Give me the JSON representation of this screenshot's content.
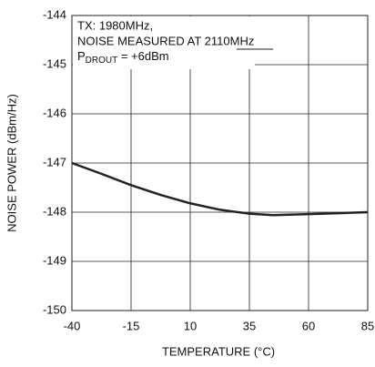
{
  "chart_data": {
    "type": "line",
    "xlabel": "TEMPERATURE (°C)",
    "ylabel": "NOISE POWER (dBm/Hz)",
    "annotations": [
      "TX: 1980MHz,",
      "NOISE MEASURED AT 2110MHz"
    ],
    "annotation_power": [
      "P",
      "DROUT",
      " = +6dBm"
    ],
    "x": [
      -40,
      -27.5,
      -15,
      -2.5,
      10,
      22.5,
      35,
      45,
      60,
      72.5,
      85
    ],
    "series": [
      {
        "color": "#222222",
        "values": [
          -147.0,
          -147.22,
          -147.45,
          -147.65,
          -147.82,
          -147.95,
          -148.03,
          -148.06,
          -148.04,
          -148.02,
          -148.0
        ]
      }
    ],
    "xlim": [
      -40,
      85
    ],
    "xticks": [
      -40,
      -15,
      10,
      35,
      60,
      85
    ],
    "ylim": [
      -150,
      -144
    ],
    "yticks": [
      -150,
      -149,
      -148,
      -147,
      -146,
      -145,
      -144
    ],
    "grid": true
  }
}
